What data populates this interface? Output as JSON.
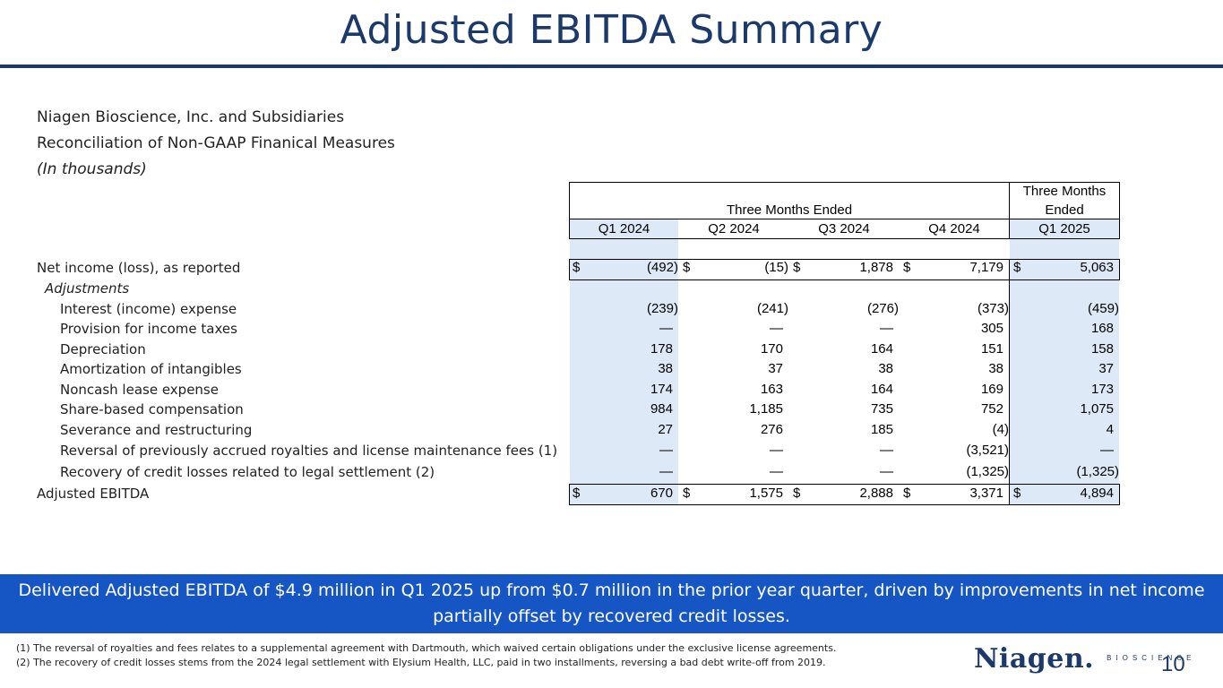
{
  "slide": {
    "title": "Adjusted EBITDA Summary",
    "page_number": "10"
  },
  "intro": {
    "company": "Niagen Bioscience, Inc. and Subsidiaries",
    "subtitle": "Reconciliation of Non-GAAP Finanical Measures",
    "units": "(In thousands)"
  },
  "table": {
    "group_header_left": "Three Months Ended",
    "group_header_right_line1": "Three Months",
    "group_header_right_line2": "Ended",
    "columns": [
      "Q1 2024",
      "Q2 2024",
      "Q3 2024",
      "Q4 2024",
      "Q1 2025"
    ],
    "currency_symbol": "$",
    "rows": [
      {
        "label": "Net income (loss), as reported",
        "indent": 0,
        "values": [
          "(492)",
          "(15)",
          "1,878",
          "7,179",
          "5,063"
        ],
        "currency": true
      },
      {
        "label": "Adjustments",
        "indent": 1,
        "italic": true,
        "values": [
          "",
          "",
          "",
          "",
          ""
        ]
      },
      {
        "label": "Interest (income) expense",
        "indent": 2,
        "values": [
          "(239)",
          "(241)",
          "(276)",
          "(373)",
          "(459)"
        ]
      },
      {
        "label": "Provision for income taxes",
        "indent": 2,
        "values": [
          "—",
          "—",
          "—",
          "305",
          "168"
        ]
      },
      {
        "label": "Depreciation",
        "indent": 2,
        "values": [
          "178",
          "170",
          "164",
          "151",
          "158"
        ]
      },
      {
        "label": "Amortization of intangibles",
        "indent": 2,
        "values": [
          "38",
          "37",
          "38",
          "38",
          "37"
        ]
      },
      {
        "label": "Noncash lease expense",
        "indent": 2,
        "values": [
          "174",
          "163",
          "164",
          "169",
          "173"
        ]
      },
      {
        "label": "Share-based compensation",
        "indent": 2,
        "values": [
          "984",
          "1,185",
          "735",
          "752",
          "1,075"
        ]
      },
      {
        "label": "Severance and restructuring",
        "indent": 2,
        "values": [
          "27",
          "276",
          "185",
          "(4)",
          "4"
        ]
      },
      {
        "label": "Reversal of previously accrued royalties and license maintenance fees (1)",
        "indent": 2,
        "values": [
          "—",
          "—",
          "—",
          "(3,521)",
          "—"
        ]
      },
      {
        "label": "Recovery of credit losses related to legal settlement (2)",
        "indent": 2,
        "values": [
          "—",
          "—",
          "—",
          "(1,325)",
          "(1,325)"
        ]
      },
      {
        "label": "Adjusted EBITDA",
        "indent": 0,
        "values": [
          "670",
          "1,575",
          "2,888",
          "3,371",
          "4,894"
        ],
        "currency": true
      }
    ]
  },
  "banner": {
    "text": "Delivered Adjusted EBITDA of $4.9 million in Q1 2025 up from $0.7 million in the prior year quarter, driven by improvements in net income partially offset by recovered credit losses."
  },
  "footnotes": [
    "(1) The reversal of royalties and fees relates to a supplemental agreement with Dartmouth, which waived certain obligations under the exclusive license agreements.",
    "(2) The recovery of credit losses stems from the 2024 legal settlement with Elysium Health, LLC, paid in two installments, reversing a bad debt write-off from 2019."
  ],
  "logo": {
    "wordmark": "Niagen.",
    "subtext": "BIOSCIENCE"
  },
  "colors": {
    "brand_navy": "#1b3a6b",
    "banner_blue": "#1656c4",
    "highlight": "#dde9f7"
  }
}
